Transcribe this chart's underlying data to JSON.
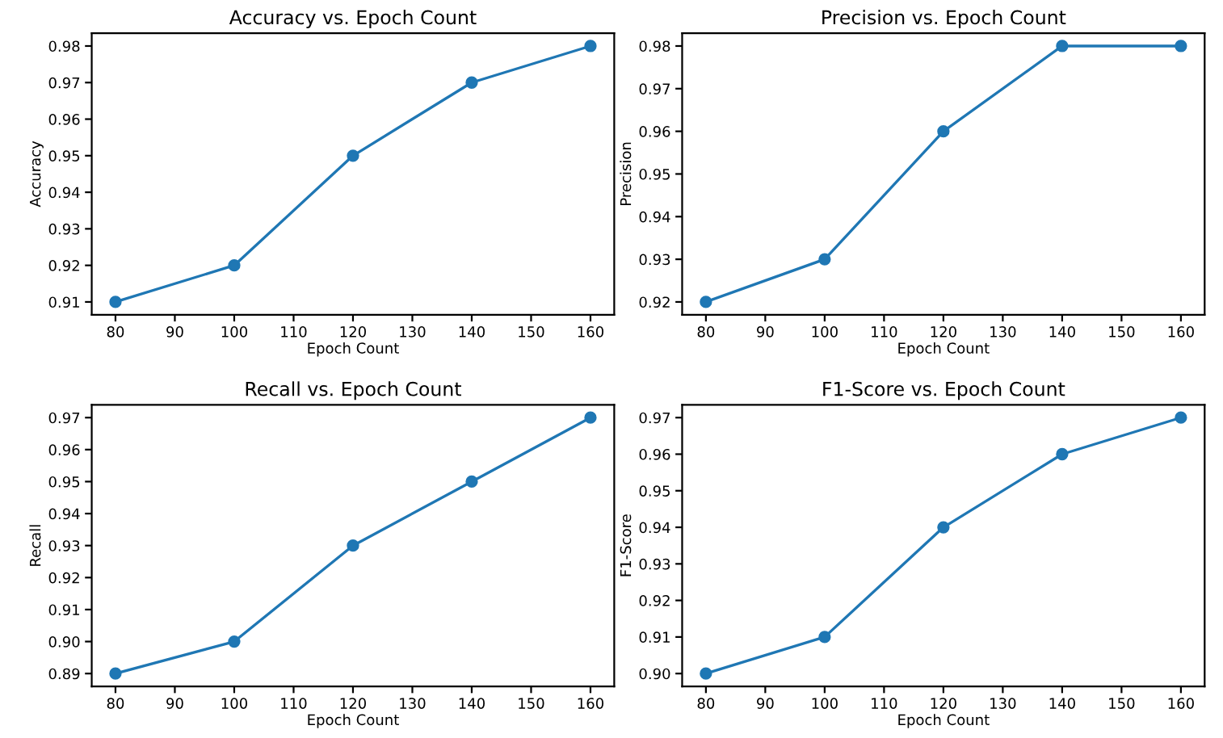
{
  "chart_data": [
    {
      "type": "line",
      "title": "Accuracy vs. Epoch Count",
      "xlabel": "Epoch Count",
      "ylabel": "Accuracy",
      "x": [
        80,
        100,
        120,
        140,
        160
      ],
      "series": [
        {
          "color": "#1f77b4",
          "values": [
            0.91,
            0.92,
            0.95,
            0.97,
            0.98
          ]
        }
      ],
      "marker": "circle",
      "xlim": [
        76,
        164
      ],
      "xticks": [
        80,
        90,
        100,
        110,
        120,
        130,
        140,
        150,
        160
      ],
      "ylim": [
        0.9065,
        0.9835
      ],
      "yticks": [
        0.91,
        0.92,
        0.93,
        0.94,
        0.95,
        0.96,
        0.97,
        0.98
      ]
    },
    {
      "type": "line",
      "title": "Precision vs. Epoch Count",
      "xlabel": "Epoch Count",
      "ylabel": "Precision",
      "x": [
        80,
        100,
        120,
        140,
        160
      ],
      "series": [
        {
          "color": "#1f77b4",
          "values": [
            0.92,
            0.93,
            0.96,
            0.98,
            0.98
          ]
        }
      ],
      "marker": "circle",
      "xlim": [
        76,
        164
      ],
      "xticks": [
        80,
        90,
        100,
        110,
        120,
        130,
        140,
        150,
        160
      ],
      "ylim": [
        0.917,
        0.983
      ],
      "yticks": [
        0.92,
        0.93,
        0.94,
        0.95,
        0.96,
        0.97,
        0.98
      ]
    },
    {
      "type": "line",
      "title": "Recall vs. Epoch Count",
      "xlabel": "Epoch Count",
      "ylabel": "Recall",
      "x": [
        80,
        100,
        120,
        140,
        160
      ],
      "series": [
        {
          "color": "#1f77b4",
          "values": [
            0.89,
            0.9,
            0.93,
            0.95,
            0.97
          ]
        }
      ],
      "marker": "circle",
      "xlim": [
        76,
        164
      ],
      "xticks": [
        80,
        90,
        100,
        110,
        120,
        130,
        140,
        150,
        160
      ],
      "ylim": [
        0.886,
        0.974
      ],
      "yticks": [
        0.89,
        {
          "value": 0.9,
          "label": "0.90"
        },
        0.91,
        0.92,
        0.93,
        0.94,
        0.95,
        0.96,
        0.97
      ]
    },
    {
      "type": "line",
      "title": "F1-Score vs. Epoch Count",
      "xlabel": "Epoch Count",
      "ylabel": "F1-Score",
      "x": [
        80,
        100,
        120,
        140,
        160
      ],
      "series": [
        {
          "color": "#1f77b4",
          "values": [
            0.9,
            0.91,
            0.94,
            0.96,
            0.97
          ]
        }
      ],
      "marker": "circle",
      "xlim": [
        76,
        164
      ],
      "xticks": [
        80,
        90,
        100,
        110,
        120,
        130,
        140,
        150,
        160
      ],
      "ylim": [
        0.8965,
        0.9735
      ],
      "yticks": [
        {
          "value": 0.9,
          "label": "0.90"
        },
        0.91,
        0.92,
        0.93,
        0.94,
        0.95,
        0.96,
        0.97
      ]
    }
  ]
}
